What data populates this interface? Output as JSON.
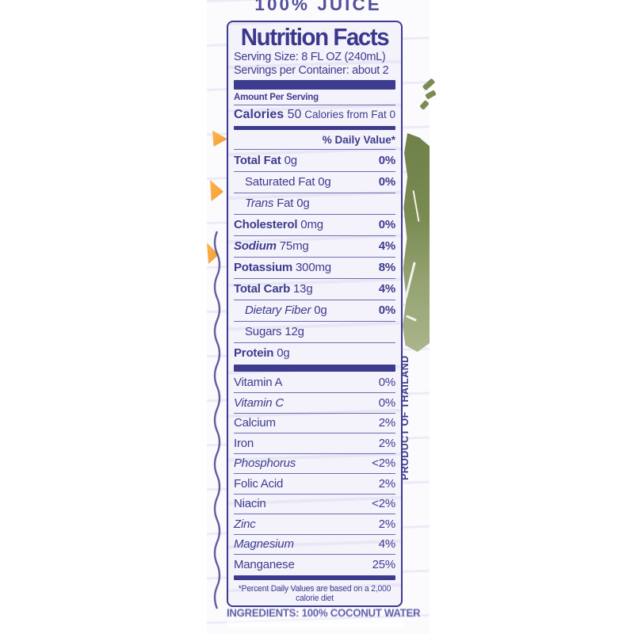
{
  "product": {
    "top_label": "100% JUICE",
    "origin": "PRODUCT OF THAILAND",
    "ingredients": "INGREDIENTS: 100% COCONUT WATER"
  },
  "nutrition": {
    "title": "Nutrition Facts",
    "serving_size": "Serving Size: 8 FL OZ (240mL)",
    "servings_per_container": "Servings per Container: about 2",
    "amount_per_serving": "Amount Per Serving",
    "calories": {
      "label": "Calories",
      "value": "50",
      "from_fat": "Calories from Fat 0"
    },
    "daily_value_header": "% Daily Value*",
    "nutrients": [
      {
        "label": "Total Fat",
        "amount": "0g",
        "dv": "0%",
        "bold": true
      },
      {
        "label": "Saturated Fat",
        "amount": "0g",
        "dv": "0%",
        "indent": true
      },
      {
        "label": "Trans",
        "suffix": "Fat",
        "amount": "0g",
        "dv": "",
        "indent": true,
        "italic": true
      },
      {
        "label": "Cholesterol",
        "amount": "0mg",
        "dv": "0%",
        "bold": true
      },
      {
        "label": "Sodium",
        "amount": "75mg",
        "dv": "4%",
        "bold": true,
        "italic": true
      },
      {
        "label": "Potassium",
        "amount": "300mg",
        "dv": "8%",
        "bold": true
      },
      {
        "label": "Total Carb",
        "amount": "13g",
        "dv": "4%",
        "bold": true
      },
      {
        "label": "Dietary Fiber",
        "amount": "0g",
        "dv": "0%",
        "indent": true,
        "italic": true
      },
      {
        "label": "Sugars",
        "amount": "12g",
        "dv": "",
        "indent": true
      },
      {
        "label": "Protein",
        "amount": "0g",
        "dv": "",
        "bold": true
      }
    ],
    "micronutrients": [
      {
        "label": "Vitamin A",
        "dv": "0%"
      },
      {
        "label": "Vitamin C",
        "dv": "0%",
        "italic": true
      },
      {
        "label": "Calcium",
        "dv": "2%"
      },
      {
        "label": "Iron",
        "dv": "2%"
      },
      {
        "label": "Phosphorus",
        "dv": "<2%",
        "italic": true
      },
      {
        "label": "Folic Acid",
        "dv": "2%"
      },
      {
        "label": "Niacin",
        "dv": "<2%"
      },
      {
        "label": "Zinc",
        "dv": "2%",
        "italic": true
      },
      {
        "label": "Magnesium",
        "dv": "4%",
        "italic": true
      },
      {
        "label": "Manganese",
        "dv": "25%"
      }
    ],
    "footnote": "*Percent Daily Values are based on a 2,000 calorie diet"
  },
  "colors": {
    "navy": "#3d3b8e",
    "label_background": "#f4f3fb",
    "leaf_green": "#7d8d57",
    "accent_orange": "#f9a843"
  }
}
